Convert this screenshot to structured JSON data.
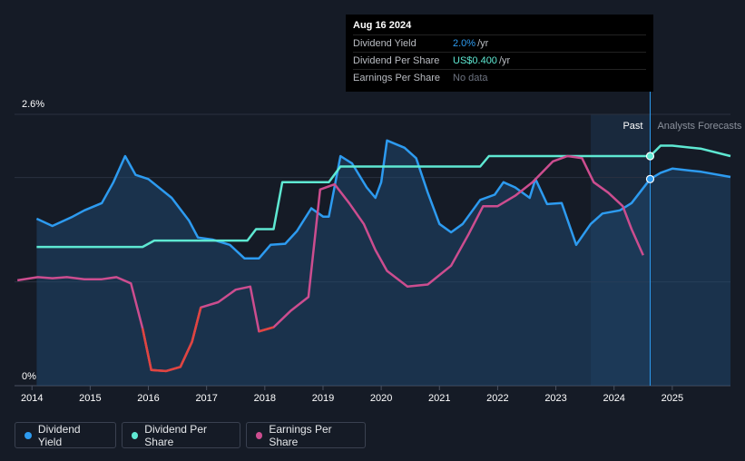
{
  "tooltip": {
    "date": "Aug 16 2024",
    "rows": [
      {
        "label": "Dividend Yield",
        "value": "2.0%",
        "unit": "/yr",
        "color": "#2d9bf0"
      },
      {
        "label": "Dividend Per Share",
        "value": "US$0.400",
        "unit": "/yr",
        "color": "#5ee8d2"
      },
      {
        "label": "Earnings Per Share",
        "value": "No data",
        "unit": "",
        "color": "#6d7380"
      }
    ]
  },
  "regions": {
    "past_label": "Past",
    "forecast_label": "Analysts Forecasts"
  },
  "legend": [
    {
      "label": "Dividend Yield",
      "color": "#2d9bf0"
    },
    {
      "label": "Dividend Per Share",
      "color": "#5ee8d2"
    },
    {
      "label": "Earnings Per Share",
      "color": "#cc4d8f"
    }
  ],
  "chart_data": {
    "type": "line",
    "y_tick_labels": [
      "2.6%",
      "0%"
    ],
    "ylim": [
      0,
      2.6
    ],
    "xlim": [
      2013.7,
      2026.0
    ],
    "x_ticks": [
      2014,
      2015,
      2016,
      2017,
      2018,
      2019,
      2020,
      2021,
      2022,
      2023,
      2024,
      2025
    ],
    "past_region": [
      2023.6,
      2024.62
    ],
    "series": [
      {
        "name": "Dividend Yield",
        "color": "#2d9bf0",
        "unit": "%",
        "points": [
          [
            2014.08,
            1.6
          ],
          [
            2014.35,
            1.53
          ],
          [
            2014.7,
            1.62
          ],
          [
            2014.9,
            1.68
          ],
          [
            2015.2,
            1.75
          ],
          [
            2015.4,
            1.95
          ],
          [
            2015.6,
            2.2
          ],
          [
            2015.78,
            2.02
          ],
          [
            2016.0,
            1.98
          ],
          [
            2016.4,
            1.8
          ],
          [
            2016.7,
            1.58
          ],
          [
            2016.85,
            1.42
          ],
          [
            2017.1,
            1.4
          ],
          [
            2017.4,
            1.35
          ],
          [
            2017.65,
            1.22
          ],
          [
            2017.9,
            1.22
          ],
          [
            2018.1,
            1.35
          ],
          [
            2018.35,
            1.36
          ],
          [
            2018.55,
            1.48
          ],
          [
            2018.8,
            1.7
          ],
          [
            2019.0,
            1.62
          ],
          [
            2019.1,
            1.62
          ],
          [
            2019.3,
            2.2
          ],
          [
            2019.5,
            2.13
          ],
          [
            2019.75,
            1.9
          ],
          [
            2019.9,
            1.8
          ],
          [
            2020.0,
            1.95
          ],
          [
            2020.1,
            2.35
          ],
          [
            2020.4,
            2.28
          ],
          [
            2020.6,
            2.18
          ],
          [
            2020.8,
            1.85
          ],
          [
            2021.0,
            1.55
          ],
          [
            2021.2,
            1.47
          ],
          [
            2021.4,
            1.55
          ],
          [
            2021.7,
            1.78
          ],
          [
            2021.95,
            1.83
          ],
          [
            2022.1,
            1.95
          ],
          [
            2022.3,
            1.9
          ],
          [
            2022.55,
            1.8
          ],
          [
            2022.65,
            1.98
          ],
          [
            2022.85,
            1.74
          ],
          [
            2023.1,
            1.75
          ],
          [
            2023.35,
            1.35
          ],
          [
            2023.6,
            1.55
          ],
          [
            2023.8,
            1.65
          ],
          [
            2024.1,
            1.68
          ],
          [
            2024.3,
            1.75
          ],
          [
            2024.62,
            1.98
          ],
          [
            2024.8,
            2.04
          ],
          [
            2025.0,
            2.08
          ],
          [
            2025.5,
            2.05
          ],
          [
            2026.0,
            2.0
          ]
        ]
      },
      {
        "name": "Dividend Per Share",
        "color": "#5ee8d2",
        "unit": "US$",
        "points": [
          [
            2014.08,
            1.33
          ],
          [
            2015.9,
            1.33
          ],
          [
            2016.1,
            1.39
          ],
          [
            2017.7,
            1.39
          ],
          [
            2017.85,
            1.5
          ],
          [
            2018.15,
            1.5
          ],
          [
            2018.3,
            1.95
          ],
          [
            2019.1,
            1.95
          ],
          [
            2019.3,
            2.1
          ],
          [
            2021.7,
            2.1
          ],
          [
            2021.85,
            2.2
          ],
          [
            2024.62,
            2.2
          ],
          [
            2024.8,
            2.3
          ],
          [
            2025.0,
            2.3
          ],
          [
            2025.5,
            2.27
          ],
          [
            2026.0,
            2.2
          ]
        ]
      },
      {
        "name": "Earnings Per Share",
        "color": "#cc4d8f",
        "unit": "US$",
        "points": [
          [
            2013.75,
            1.01
          ],
          [
            2014.1,
            1.04
          ],
          [
            2014.35,
            1.03
          ],
          [
            2014.6,
            1.04
          ],
          [
            2014.9,
            1.02
          ],
          [
            2015.2,
            1.02
          ],
          [
            2015.45,
            1.04
          ],
          [
            2015.7,
            0.98
          ],
          [
            2015.9,
            0.55
          ],
          [
            2016.05,
            0.15
          ],
          [
            2016.3,
            0.14
          ],
          [
            2016.55,
            0.18
          ],
          [
            2016.75,
            0.42
          ],
          [
            2016.9,
            0.75
          ],
          [
            2017.2,
            0.8
          ],
          [
            2017.5,
            0.92
          ],
          [
            2017.75,
            0.95
          ],
          [
            2017.9,
            0.52
          ],
          [
            2018.15,
            0.56
          ],
          [
            2018.45,
            0.72
          ],
          [
            2018.75,
            0.85
          ],
          [
            2018.95,
            1.88
          ],
          [
            2019.2,
            1.93
          ],
          [
            2019.45,
            1.75
          ],
          [
            2019.7,
            1.55
          ],
          [
            2019.9,
            1.3
          ],
          [
            2020.1,
            1.1
          ],
          [
            2020.45,
            0.95
          ],
          [
            2020.8,
            0.97
          ],
          [
            2021.2,
            1.15
          ],
          [
            2021.5,
            1.45
          ],
          [
            2021.75,
            1.72
          ],
          [
            2022.0,
            1.72
          ],
          [
            2022.3,
            1.82
          ],
          [
            2022.6,
            1.95
          ],
          [
            2022.95,
            2.15
          ],
          [
            2023.2,
            2.2
          ],
          [
            2023.45,
            2.18
          ],
          [
            2023.65,
            1.95
          ],
          [
            2023.9,
            1.85
          ],
          [
            2024.15,
            1.72
          ],
          [
            2024.3,
            1.5
          ],
          [
            2024.5,
            1.25
          ]
        ]
      }
    ]
  }
}
